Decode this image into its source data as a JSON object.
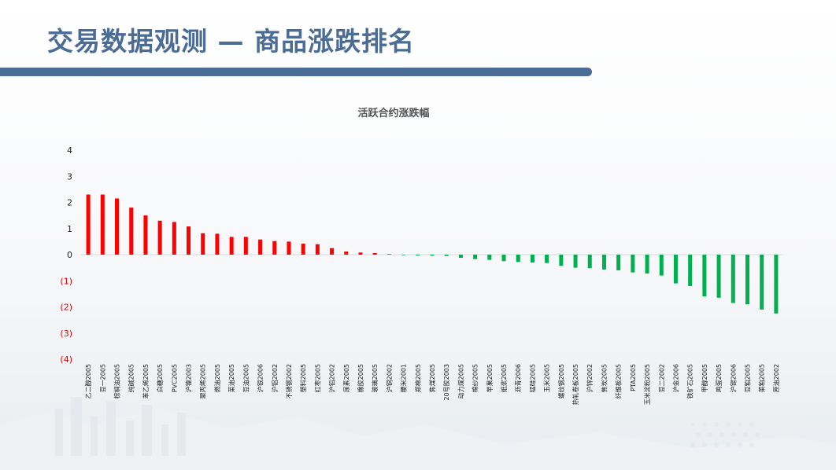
{
  "page": {
    "title": "交易数据观测 — 商品涨跌排名"
  },
  "colors": {
    "accent": "#4a6c95",
    "positive": "#ff0000",
    "negative": "#00b050",
    "negative_tick": "#e00000"
  },
  "chart_data": {
    "type": "bar",
    "title": "活跃合约涨跌幅",
    "xlabel": "",
    "ylabel": "",
    "ylim": [
      -4,
      4
    ],
    "yticks": [
      4,
      3,
      2,
      1,
      0,
      -1,
      -2,
      -3,
      -4
    ],
    "ytick_labels": [
      "4",
      "3",
      "2",
      "1",
      "0",
      "(1)",
      "(2)",
      "(3)",
      "(4)"
    ],
    "grid": false,
    "legend": "none",
    "categories": [
      "乙二醇2005",
      "豆一2005",
      "棕榈油2005",
      "纯碱2005",
      "苯乙烯2005",
      "白糖2005",
      "PVC2005",
      "沪镍2003",
      "聚丙烯2005",
      "燃油2005",
      "菜油2005",
      "豆油2005",
      "沪银2006",
      "沪铝2002",
      "不锈钢2002",
      "塑料2005",
      "红枣2005",
      "沪铅2002",
      "尿素2005",
      "橡胶2005",
      "玻璃2005",
      "沪铜2002",
      "粳米2001",
      "郑棉2005",
      "焦煤2005",
      "20号胶2003",
      "动力煤2005",
      "棉纱2005",
      "苹果2005",
      "纸浆2005",
      "沥青2006",
      "锰硅2005",
      "玉米2005",
      "螺纹钢2005",
      "热轧卷板2005",
      "沪锌2002",
      "焦炭2005",
      "纤维板2005",
      "PTA2005",
      "玉米淀粉2005",
      "豆二2002",
      "沪金2006",
      "铁矿石2005",
      "甲醇2005",
      "鸡蛋2005",
      "沪锡2006",
      "豆粕2005",
      "菜粕2005",
      "原油2002"
    ],
    "values": [
      2.3,
      2.3,
      2.15,
      1.8,
      1.5,
      1.3,
      1.25,
      1.08,
      0.82,
      0.8,
      0.68,
      0.68,
      0.58,
      0.52,
      0.5,
      0.42,
      0.4,
      0.25,
      0.12,
      0.08,
      0.06,
      0.02,
      -0.02,
      -0.03,
      -0.04,
      -0.05,
      -0.12,
      -0.17,
      -0.2,
      -0.25,
      -0.28,
      -0.3,
      -0.32,
      -0.43,
      -0.5,
      -0.52,
      -0.57,
      -0.6,
      -0.68,
      -0.72,
      -0.8,
      -1.1,
      -1.2,
      -1.6,
      -1.65,
      -1.85,
      -1.9,
      -2.1,
      -2.25
    ]
  }
}
